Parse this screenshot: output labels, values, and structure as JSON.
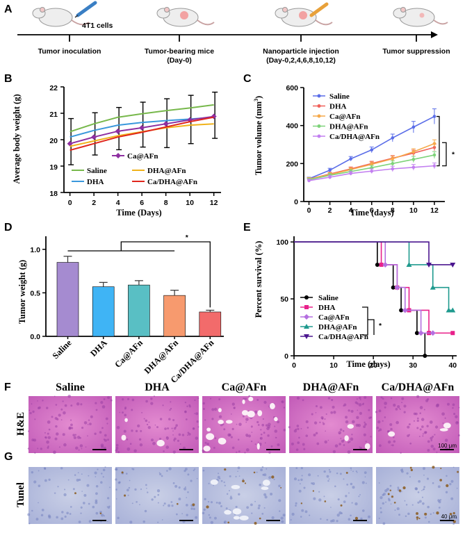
{
  "panel_labels": {
    "a": "A",
    "b": "B",
    "c": "C",
    "d": "D",
    "e": "E",
    "f": "F",
    "g": "G"
  },
  "timeline": {
    "cell_label": "4T1 cells",
    "steps": [
      {
        "label": "Tumor inoculation",
        "sub": ""
      },
      {
        "label": "Tumor-bearing mice",
        "sub": "(Day-0)"
      },
      {
        "label": "Nanoparticle injection",
        "sub": "(Day-0,2,4,6,8,10,12)"
      },
      {
        "label": "Tumor suppression",
        "sub": ""
      }
    ]
  },
  "histology": {
    "groups": [
      "Saline",
      "DHA",
      "Ca@AFn",
      "DHA@AFn",
      "Ca/DHA@AFn"
    ],
    "rows": [
      {
        "label": "H&E",
        "scale": "100 μm"
      },
      {
        "label": "Tunel",
        "scale": "40 μm"
      }
    ]
  },
  "colors": {
    "saline_b": "#77b84b",
    "dha_b": "#3a98dc",
    "ca_b": "#8e2fa1",
    "dhaafn_b": "#f0b21a",
    "cadha_b": "#e0261c",
    "saline_c": "#5a6de8",
    "dha_c": "#f0605a",
    "ca_c": "#f6a94a",
    "dhaafn_c": "#7ed37a",
    "cadha_c": "#c27ff0",
    "bar_saline": "#a58bd0",
    "bar_dha": "#3fb4f5",
    "bar_ca": "#59bfc4",
    "bar_dhaafn": "#f79a6e",
    "bar_cadha": "#f26b6b",
    "surv_saline": "#000000",
    "surv_dha": "#e8208a",
    "surv_ca": "#b46fe0",
    "surv_dhaafn": "#1f9a8e",
    "surv_cadha": "#4b168f"
  },
  "chart_data": [
    {
      "id": "B",
      "type": "line",
      "title": "",
      "xlabel": "Time (Days)",
      "ylabel": "Average body weight (g)",
      "x": [
        0,
        2,
        4,
        6,
        8,
        10,
        12
      ],
      "xlim": [
        -0.5,
        12.6
      ],
      "ylim": [
        18,
        22
      ],
      "xticks": [
        "0",
        "2",
        "4",
        "6",
        "8",
        "10",
        "12"
      ],
      "yticks": [
        "18",
        "19",
        "20",
        "21",
        "22"
      ],
      "series": [
        {
          "name": "Saline",
          "color": "#77b84b",
          "values": [
            20.3,
            20.6,
            20.85,
            20.98,
            21.1,
            21.2,
            21.32
          ]
        },
        {
          "name": "DHA",
          "color": "#3a98dc",
          "values": [
            20.1,
            20.35,
            20.55,
            20.65,
            20.72,
            20.78,
            20.85
          ]
        },
        {
          "name": "Ca@AFn",
          "color": "#8e2fa1",
          "marker": "diamond",
          "values": [
            19.85,
            20.1,
            20.32,
            20.45,
            20.6,
            20.75,
            20.88
          ],
          "err": [
            0.75,
            0.9,
            0.9,
            0.75,
            0.7,
            0.65,
            0.6
          ]
        },
        {
          "name": "DHA@AFn",
          "color": "#f0b21a",
          "values": [
            19.75,
            19.95,
            20.15,
            20.3,
            20.45,
            20.55,
            20.6
          ]
        },
        {
          "name": "Ca/DHA@AFn",
          "color": "#e0261c",
          "values": [
            19.6,
            19.85,
            20.1,
            20.28,
            20.48,
            20.68,
            20.85
          ]
        }
      ],
      "err_top": [
        20.8,
        21.02,
        21.22,
        21.42,
        21.55,
        21.68,
        21.8
      ],
      "err_bot": [
        19.05,
        19.42,
        19.62,
        19.72,
        19.7,
        19.85,
        20.05
      ]
    },
    {
      "id": "C",
      "type": "line",
      "xlabel": "Time (days)",
      "ylabel": "Tumor volume (mm3)",
      "x": [
        0,
        2,
        4,
        6,
        8,
        10,
        12
      ],
      "xlim": [
        -0.5,
        13
      ],
      "ylim": [
        0,
        600
      ],
      "xticks": [
        "0",
        "2",
        "4",
        "6",
        "8",
        "10",
        "12"
      ],
      "yticks": [
        "0",
        "200",
        "400",
        "600"
      ],
      "significance": "*",
      "series": [
        {
          "name": "Saline",
          "color": "#5a6de8",
          "values": [
            120,
            165,
            225,
            272,
            335,
            392,
            448
          ],
          "err": [
            8,
            10,
            12,
            15,
            20,
            30,
            40
          ]
        },
        {
          "name": "DHA",
          "color": "#f0605a",
          "values": [
            118,
            145,
            172,
            200,
            228,
            255,
            285
          ],
          "err": [
            8,
            9,
            10,
            12,
            14,
            16,
            18
          ]
        },
        {
          "name": "Ca@AFn",
          "color": "#f6a94a",
          "values": [
            118,
            142,
            168,
            196,
            225,
            262,
            305
          ],
          "err": [
            8,
            9,
            10,
            12,
            14,
            16,
            20
          ]
        },
        {
          "name": "DHA@AFn",
          "color": "#7ed37a",
          "values": [
            115,
            138,
            158,
            178,
            200,
            222,
            245
          ],
          "err": [
            8,
            9,
            10,
            12,
            14,
            16,
            18
          ]
        },
        {
          "name": "Ca/DHA@AFn",
          "color": "#c27ff0",
          "values": [
            110,
            128,
            148,
            160,
            172,
            180,
            188
          ],
          "err": [
            8,
            9,
            10,
            12,
            14,
            15,
            15
          ]
        }
      ]
    },
    {
      "id": "D",
      "type": "bar",
      "ylabel": "Tumor weight (g)",
      "categories": [
        "Saline",
        "DHA",
        "Ca@AFn",
        "DHA@AFn",
        "Ca/DHA@AFn"
      ],
      "values": [
        0.85,
        0.57,
        0.59,
        0.47,
        0.28
      ],
      "err": [
        0.07,
        0.05,
        0.05,
        0.06,
        0.02
      ],
      "ylim": [
        0,
        1.15
      ],
      "yticks": [
        "0.0",
        "0.5",
        "1.0"
      ],
      "significance": "*"
    },
    {
      "id": "E",
      "type": "line",
      "xlabel": "Time (days)",
      "ylabel": "Percent survival (%)",
      "xlim": [
        0,
        41
      ],
      "ylim": [
        0,
        105
      ],
      "xticks": [
        "0",
        "10",
        "20",
        "30",
        "40"
      ],
      "yticks": [
        "0",
        "50",
        "100"
      ],
      "significance": "*",
      "series": [
        {
          "name": "Saline",
          "color": "#000000",
          "marker": "circle",
          "steps": [
            [
              0,
              100
            ],
            [
              21,
              100
            ],
            [
              21,
              80
            ],
            [
              25,
              80
            ],
            [
              25,
              60
            ],
            [
              27,
              60
            ],
            [
              27,
              40
            ],
            [
              31,
              40
            ],
            [
              31,
              20
            ],
            [
              33,
              20
            ],
            [
              33,
              0
            ]
          ]
        },
        {
          "name": "DHA",
          "color": "#e8208a",
          "marker": "square",
          "steps": [
            [
              0,
              100
            ],
            [
              22,
              100
            ],
            [
              22,
              80
            ],
            [
              26,
              80
            ],
            [
              26,
              60
            ],
            [
              29,
              60
            ],
            [
              29,
              40
            ],
            [
              34,
              40
            ],
            [
              34,
              20
            ],
            [
              40,
              20
            ]
          ]
        },
        {
          "name": "Ca@AFn",
          "color": "#b46fe0",
          "marker": "diamond",
          "steps": [
            [
              0,
              100
            ],
            [
              23,
              100
            ],
            [
              23,
              80
            ],
            [
              26,
              80
            ],
            [
              26,
              60
            ],
            [
              28,
              60
            ],
            [
              28,
              40
            ],
            [
              32,
              40
            ],
            [
              32,
              20
            ],
            [
              35,
              20
            ]
          ]
        },
        {
          "name": "DHA@AFn",
          "color": "#1f9a8e",
          "marker": "triangle",
          "steps": [
            [
              0,
              100
            ],
            [
              29,
              100
            ],
            [
              29,
              80
            ],
            [
              35,
              80
            ],
            [
              35,
              60
            ],
            [
              39,
              60
            ],
            [
              39,
              40
            ],
            [
              40,
              40
            ]
          ]
        },
        {
          "name": "Ca/DHA@AFn",
          "color": "#4b168f",
          "marker": "triangle-down",
          "steps": [
            [
              0,
              100
            ],
            [
              34,
              100
            ],
            [
              34,
              80
            ],
            [
              40,
              80
            ]
          ]
        }
      ]
    }
  ]
}
